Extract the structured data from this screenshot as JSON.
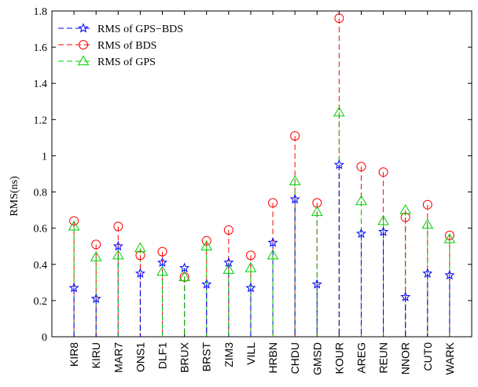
{
  "chart_data": {
    "type": "line",
    "xlabel": "",
    "ylabel": "RMS(ns)",
    "ylim": [
      0,
      1.8
    ],
    "yticks": [
      0,
      0.2,
      0.4,
      0.6,
      0.8,
      1,
      1.2,
      1.4,
      1.6,
      1.8
    ],
    "ytick_labels": [
      "0",
      "0.2",
      "0.4",
      "0.6",
      "0.8",
      "1",
      "1.2",
      "1.4",
      "1.6",
      "1.8"
    ],
    "grid": false,
    "legend_position": "top-left",
    "categories": [
      "KIR8",
      "KIRU",
      "MAR7",
      "ONS1",
      "DLF1",
      "BRUX",
      "BRST",
      "ZIM3",
      "VILL",
      "HRBN",
      "CHDU",
      "GMSD",
      "KOUR",
      "AREG",
      "REUN",
      "NNOR",
      "CUT0",
      "WARK"
    ],
    "series": [
      {
        "name": "RMS of GPS−BDS",
        "color": "#0000ff",
        "marker": "star",
        "values": [
          0.27,
          0.21,
          0.5,
          0.35,
          0.41,
          0.38,
          0.29,
          0.41,
          0.27,
          0.52,
          0.76,
          0.29,
          0.95,
          0.57,
          0.58,
          0.22,
          0.35,
          0.34
        ]
      },
      {
        "name": "RMS of BDS",
        "color": "#ff0000",
        "marker": "circle",
        "values": [
          0.64,
          0.51,
          0.61,
          0.45,
          0.47,
          0.33,
          0.53,
          0.59,
          0.45,
          0.74,
          1.11,
          0.74,
          1.76,
          0.94,
          0.91,
          0.66,
          0.73,
          0.56
        ]
      },
      {
        "name": "RMS of GPS",
        "color": "#00cc00",
        "marker": "triangle",
        "values": [
          0.61,
          0.44,
          0.45,
          0.49,
          0.36,
          0.33,
          0.5,
          0.37,
          0.38,
          0.45,
          0.86,
          0.69,
          1.24,
          0.75,
          0.64,
          0.7,
          0.62,
          0.54
        ]
      }
    ]
  }
}
